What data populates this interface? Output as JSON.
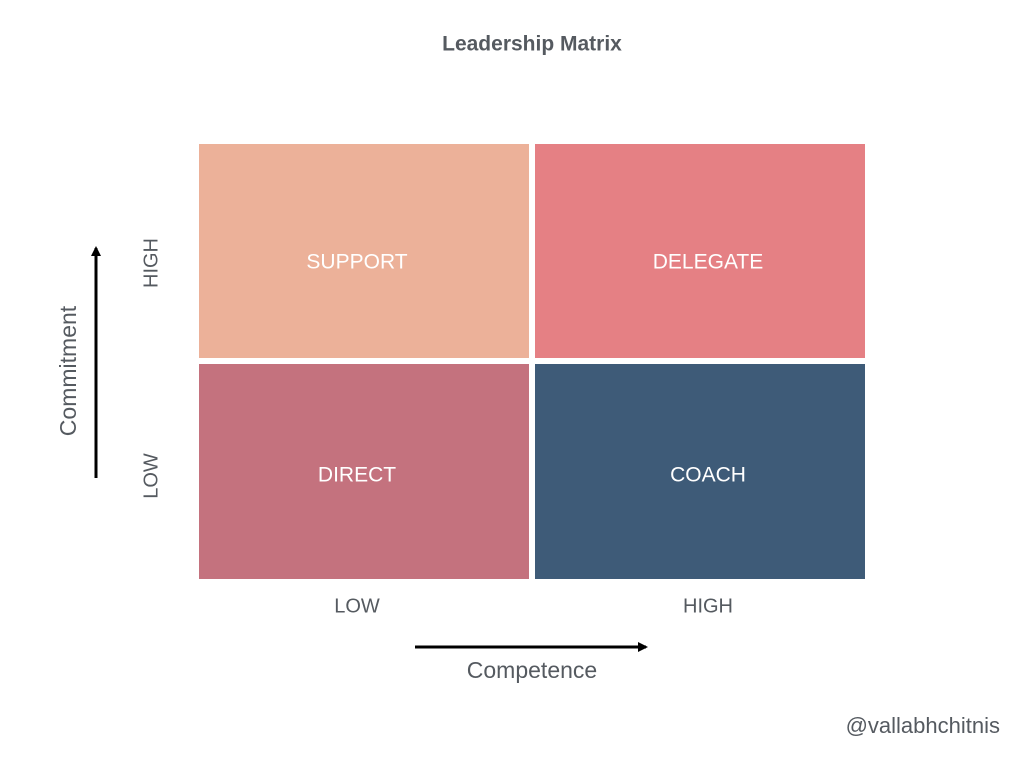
{
  "title": "Leadership Matrix",
  "quadrants": [
    {
      "label": "SUPPORT"
    },
    {
      "label": "DELEGATE"
    },
    {
      "label": "DIRECT"
    },
    {
      "label": "COACH"
    }
  ],
  "y_axis": {
    "label": "Commitment",
    "ticks": [
      "HIGH",
      "LOW"
    ]
  },
  "x_axis": {
    "label": "Competence",
    "ticks": [
      "LOW",
      "HIGH"
    ]
  },
  "credit": "@vallabhchitnis"
}
